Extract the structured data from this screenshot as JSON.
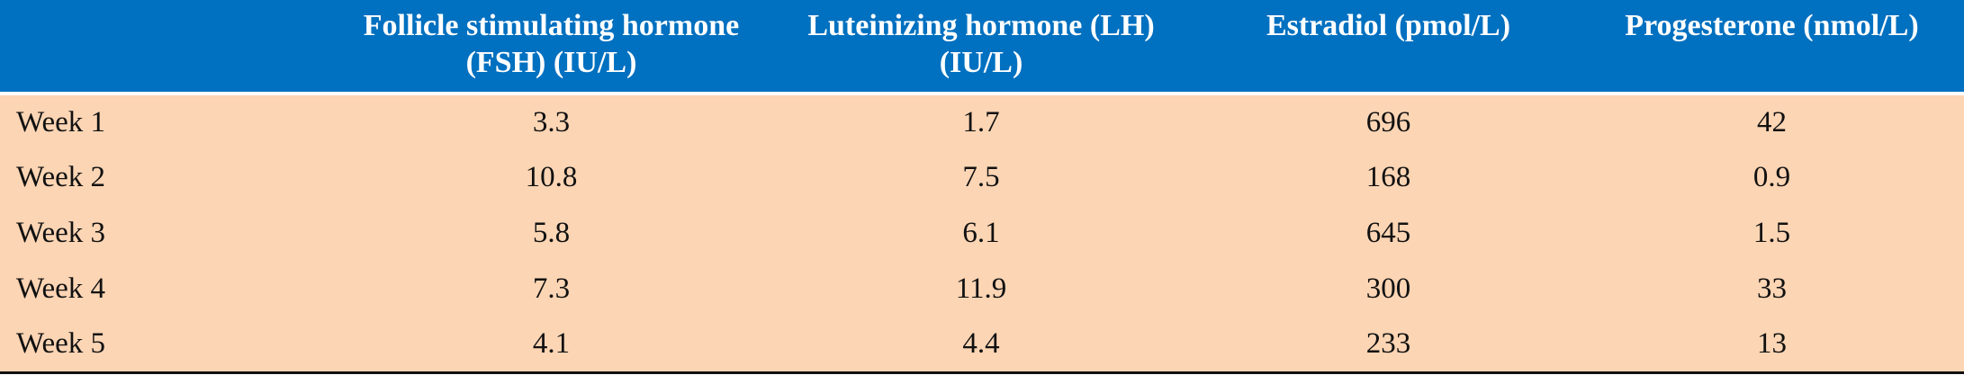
{
  "table": {
    "header": [
      "Follicle stimulating hormone (FSH) (IU/L)",
      "Luteinizing hormone (LH) (IU/L)",
      "Estradiol (pmol/L)",
      "Progesterone (nmol/L)"
    ],
    "rows": [
      [
        "Week 1",
        "3.3",
        "1.7",
        "696",
        "42"
      ],
      [
        "Week 2",
        "10.8",
        "7.5",
        "168",
        "0.9"
      ],
      [
        "Week 3",
        "5.8",
        "6.1",
        "645",
        "1.5"
      ],
      [
        "Week 4",
        "7.3",
        "11.9",
        "300",
        "33"
      ],
      [
        "Week 5",
        "4.1",
        "4.4",
        "233",
        "13"
      ]
    ]
  }
}
